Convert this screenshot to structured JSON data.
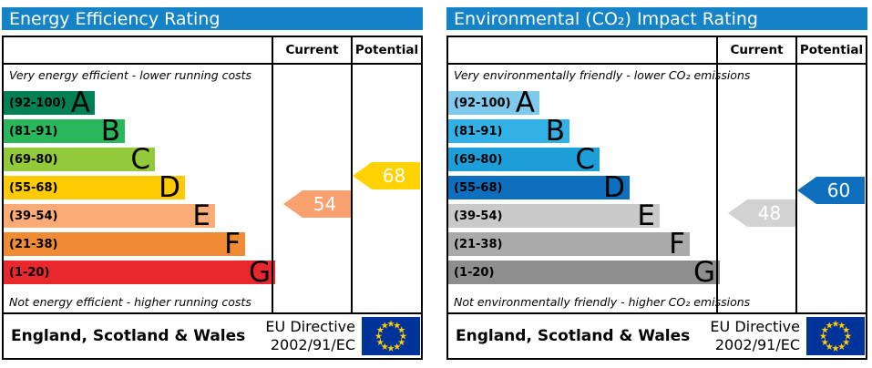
{
  "panels": [
    {
      "title": "Energy Efficiency Rating",
      "header_color": "#1583c7",
      "columns": {
        "current": "Current",
        "potential": "Potential"
      },
      "top_note": "Very energy efficient - lower running costs",
      "bottom_note": "Not energy efficient - higher running costs",
      "bands": [
        {
          "letter": "A",
          "range_label": "(92-100)",
          "min": 92,
          "max": 100,
          "color": "#008054"
        },
        {
          "letter": "B",
          "range_label": "(81-91)",
          "min": 81,
          "max": 91,
          "color": "#2ab65b"
        },
        {
          "letter": "C",
          "range_label": "(69-80)",
          "min": 69,
          "max": 80,
          "color": "#93ca3c"
        },
        {
          "letter": "D",
          "range_label": "(55-68)",
          "min": 55,
          "max": 68,
          "color": "#fecb00"
        },
        {
          "letter": "E",
          "range_label": "(39-54)",
          "min": 39,
          "max": 54,
          "color": "#fbab76"
        },
        {
          "letter": "F",
          "range_label": "(21-38)",
          "min": 21,
          "max": 38,
          "color": "#f08b33"
        },
        {
          "letter": "G",
          "range_label": "(1-20)",
          "min": 1,
          "max": 20,
          "color": "#e9282e"
        }
      ],
      "current": {
        "value": 54,
        "color": "#f9a16e"
      },
      "potential": {
        "value": 68,
        "color": "#ffd200"
      },
      "footer": {
        "region": "England, Scotland & Wales",
        "directive_line1": "EU Directive",
        "directive_line2": "2002/91/EC",
        "flag_field_color": "#003399",
        "flag_star_color": "#ffcc00"
      }
    },
    {
      "title": "Environmental (CO₂) Impact Rating",
      "header_color": "#1583c7",
      "columns": {
        "current": "Current",
        "potential": "Potential"
      },
      "top_note": "Very environmentally friendly - lower CO₂ emissions",
      "bottom_note": "Not environmentally friendly - higher CO₂ emissions",
      "bands": [
        {
          "letter": "A",
          "range_label": "(92-100)",
          "min": 92,
          "max": 100,
          "color": "#7fc9ec"
        },
        {
          "letter": "B",
          "range_label": "(81-91)",
          "min": 81,
          "max": 91,
          "color": "#32b1e6"
        },
        {
          "letter": "C",
          "range_label": "(69-80)",
          "min": 69,
          "max": 80,
          "color": "#1d9ed9"
        },
        {
          "letter": "D",
          "range_label": "(55-68)",
          "min": 55,
          "max": 68,
          "color": "#0d6fbd"
        },
        {
          "letter": "E",
          "range_label": "(39-54)",
          "min": 39,
          "max": 54,
          "color": "#c9c9c9"
        },
        {
          "letter": "F",
          "range_label": "(21-38)",
          "min": 21,
          "max": 38,
          "color": "#aaaaaa"
        },
        {
          "letter": "G",
          "range_label": "(1-20)",
          "min": 1,
          "max": 20,
          "color": "#8e8e8e"
        }
      ],
      "current": {
        "value": 48,
        "color": "#d2d2d2"
      },
      "potential": {
        "value": 60,
        "color": "#0d6fbd"
      },
      "footer": {
        "region": "England, Scotland & Wales",
        "directive_line1": "EU Directive",
        "directive_line2": "2002/91/EC",
        "flag_field_color": "#003399",
        "flag_star_color": "#ffcc00"
      }
    }
  ],
  "chart_data": [
    {
      "type": "bar",
      "title": "Energy Efficiency Rating",
      "categories": [
        "A (92-100)",
        "B (81-91)",
        "C (69-80)",
        "D (55-68)",
        "E (39-54)",
        "F (21-38)",
        "G (1-20)"
      ],
      "series": [
        {
          "name": "Current",
          "values": [
            54
          ]
        },
        {
          "name": "Potential",
          "values": [
            68
          ]
        }
      ],
      "value_range": [
        1,
        100
      ],
      "annotations": [
        "Very energy efficient - lower running costs",
        "Not energy efficient - higher running costs"
      ],
      "footer": "England, Scotland & Wales — EU Directive 2002/91/EC"
    },
    {
      "type": "bar",
      "title": "Environmental (CO₂) Impact Rating",
      "categories": [
        "A (92-100)",
        "B (81-91)",
        "C (69-80)",
        "D (55-68)",
        "E (39-54)",
        "F (21-38)",
        "G (1-20)"
      ],
      "series": [
        {
          "name": "Current",
          "values": [
            48
          ]
        },
        {
          "name": "Potential",
          "values": [
            60
          ]
        }
      ],
      "value_range": [
        1,
        100
      ],
      "annotations": [
        "Very environmentally friendly - lower CO₂ emissions",
        "Not environmentally friendly - higher CO₂ emissions"
      ],
      "footer": "England, Scotland & Wales — EU Directive 2002/91/EC"
    }
  ]
}
